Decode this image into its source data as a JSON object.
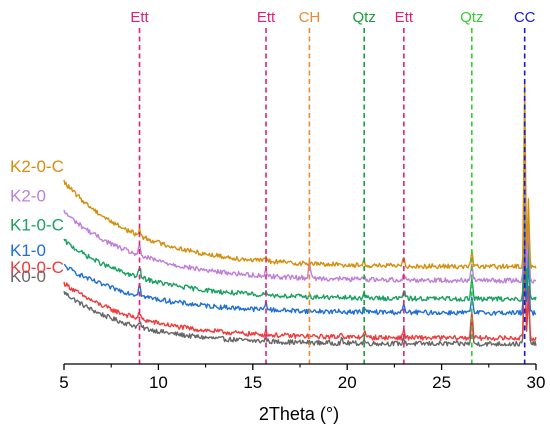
{
  "chart_data": {
    "type": "line",
    "title": "",
    "xlabel": "2Theta (°)",
    "ylabel": "",
    "xlim": [
      5,
      30
    ],
    "xticks": [
      5,
      10,
      15,
      20,
      25,
      30
    ],
    "xtick_labels": [
      "5",
      "10",
      "15",
      "20",
      "25",
      "30"
    ],
    "grid": false,
    "legend": "left, labels beside curve starts",
    "note_y": "arbitrary intensity units, vertically offset stack",
    "series": [
      {
        "name": "K0-0",
        "color": "#666666",
        "start": 52,
        "end": 7,
        "decay": 0.28,
        "peaks": [
          [
            9.0,
            4
          ],
          [
            15.7,
            3
          ],
          [
            19.7,
            3
          ],
          [
            20.9,
            3
          ],
          [
            23.0,
            4
          ],
          [
            26.6,
            18
          ],
          [
            29.4,
            80
          ],
          [
            29.6,
            40
          ]
        ]
      },
      {
        "name": "K0-0-C",
        "color": "#ef3b3b",
        "start": 60,
        "end": 12,
        "decay": 0.26,
        "peaks": [
          [
            9.0,
            5
          ],
          [
            15.7,
            3
          ],
          [
            19.7,
            5
          ],
          [
            20.9,
            6
          ],
          [
            23.0,
            7
          ],
          [
            26.6,
            24
          ],
          [
            29.4,
            92
          ],
          [
            29.6,
            45
          ]
        ]
      },
      {
        "name": "K1-0",
        "color": "#1f6fd6",
        "start": 75,
        "end": 34,
        "decay": 0.25,
        "peaks": [
          [
            9.0,
            12
          ],
          [
            15.7,
            7
          ],
          [
            20.9,
            4
          ],
          [
            23.0,
            6
          ],
          [
            26.6,
            12
          ],
          [
            29.4,
            110
          ],
          [
            29.6,
            50
          ]
        ]
      },
      {
        "name": "K1-0-C",
        "color": "#1aa060",
        "start": 97,
        "end": 46,
        "decay": 0.25,
        "peaks": [
          [
            9.0,
            10
          ],
          [
            15.7,
            5
          ],
          [
            20.9,
            4
          ],
          [
            23.0,
            8
          ],
          [
            26.6,
            18
          ],
          [
            29.4,
            108
          ],
          [
            29.6,
            52
          ]
        ]
      },
      {
        "name": "K2-0",
        "color": "#bf7fd9",
        "start": 122,
        "end": 62,
        "decay": 0.25,
        "peaks": [
          [
            9.0,
            8
          ],
          [
            15.7,
            5
          ],
          [
            18.0,
            15
          ],
          [
            20.9,
            3
          ],
          [
            23.0,
            6
          ],
          [
            26.6,
            16
          ],
          [
            29.4,
            128
          ],
          [
            29.6,
            55
          ]
        ]
      },
      {
        "name": "K2-0-C",
        "color": "#d4900c",
        "start": 148,
        "end": 74,
        "decay": 0.25,
        "peaks": [
          [
            9.0,
            5
          ],
          [
            15.7,
            4
          ],
          [
            20.9,
            3
          ],
          [
            23.0,
            7
          ],
          [
            26.6,
            13
          ],
          [
            29.4,
            160
          ],
          [
            29.6,
            60
          ]
        ]
      }
    ],
    "reference_lines": [
      {
        "label": "Ett",
        "x": 9.0,
        "color": "#e0217a"
      },
      {
        "label": "Ett",
        "x": 15.7,
        "color": "#e0217a"
      },
      {
        "label": "CH",
        "x": 18.0,
        "color": "#ee8a2a"
      },
      {
        "label": "Qtz",
        "x": 20.9,
        "color": "#1aa03a"
      },
      {
        "label": "Ett",
        "x": 23.0,
        "color": "#e0217a"
      },
      {
        "label": "Qtz",
        "x": 26.6,
        "color": "#33cc33"
      },
      {
        "label": "CC",
        "x": 29.4,
        "color": "#1a1ad6"
      }
    ]
  }
}
